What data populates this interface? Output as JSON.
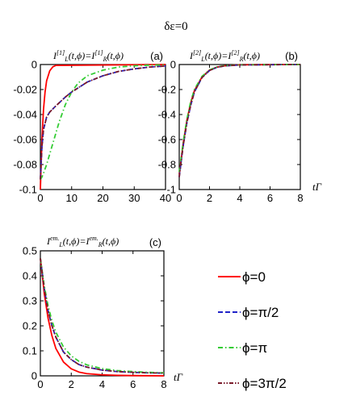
{
  "figure": {
    "title": "δε=0",
    "x_axis_label": "tΓ",
    "colors": {
      "phi_0": "#ff0000",
      "phi_pi_2": "#1f22c8",
      "phi_pi": "#33cc33",
      "phi_3pi_2": "#7a1a2a"
    }
  },
  "chart_data": [
    {
      "type": "line",
      "panel": "(a)",
      "title": "I[1]L(t,ϕ)=I[1]R(t,ϕ)",
      "xlim": [
        0,
        40
      ],
      "ylim": [
        -0.1,
        0
      ],
      "x_ticks": [
        "0",
        "10",
        "20",
        "30",
        "40"
      ],
      "y_ticks": [
        "0",
        "-0.02",
        "-0.04",
        "-0.06",
        "-0.08",
        "-0.1"
      ],
      "x_tick_values": [
        0,
        10,
        20,
        30,
        40
      ],
      "y_tick_values": [
        0,
        -0.02,
        -0.04,
        -0.06,
        -0.08,
        -0.1
      ],
      "series": [
        {
          "key": "phi_0",
          "x": [
            0,
            0.5,
            1,
            1.5,
            2,
            3,
            4,
            5,
            40
          ],
          "y": [
            -0.1,
            -0.06,
            -0.036,
            -0.022,
            -0.013,
            -0.005,
            -0.0018,
            -0.0007,
            0
          ]
        },
        {
          "key": "phi_pi_2",
          "x": [
            0,
            0.5,
            1,
            2,
            3,
            5,
            8,
            10,
            15,
            20,
            25,
            30,
            35,
            40
          ],
          "y": [
            -0.092,
            -0.066,
            -0.052,
            -0.042,
            -0.038,
            -0.033,
            -0.026,
            -0.022,
            -0.014,
            -0.009,
            -0.0055,
            -0.0035,
            -0.002,
            -0.0012
          ]
        },
        {
          "key": "phi_pi",
          "x": [
            0,
            0.5,
            1,
            2,
            4,
            6,
            8,
            10,
            12,
            15,
            20,
            25,
            30,
            35,
            40
          ],
          "y": [
            -0.092,
            -0.09,
            -0.087,
            -0.08,
            -0.063,
            -0.046,
            -0.032,
            -0.022,
            -0.015,
            -0.009,
            -0.0045,
            -0.002,
            -0.001,
            -0.0005,
            -0.0002
          ]
        },
        {
          "key": "phi_3pi_2",
          "x": [
            0,
            0.5,
            1,
            2,
            3,
            5,
            8,
            10,
            15,
            20,
            25,
            30,
            35,
            40
          ],
          "y": [
            -0.092,
            -0.066,
            -0.052,
            -0.042,
            -0.038,
            -0.033,
            -0.026,
            -0.022,
            -0.014,
            -0.009,
            -0.0055,
            -0.0035,
            -0.002,
            -0.0012
          ]
        }
      ]
    },
    {
      "type": "line",
      "panel": "(b)",
      "title": "I[2]L(t,ϕ)=I[2]R(t,ϕ)",
      "xlim": [
        0,
        8
      ],
      "ylim": [
        -1,
        0
      ],
      "x_ticks": [
        "0",
        "2",
        "4",
        "6",
        "8"
      ],
      "y_ticks": [
        "0",
        "-0.2",
        "-0.4",
        "-0.6",
        "-0.8",
        "-1"
      ],
      "x_tick_values": [
        0,
        2,
        4,
        6,
        8
      ],
      "y_tick_values": [
        0,
        -0.2,
        -0.4,
        -0.6,
        -0.8,
        -1
      ],
      "series": [
        {
          "key": "phi_0",
          "x": [
            0,
            0.25,
            0.5,
            0.75,
            1,
            1.5,
            2,
            2.5,
            3,
            4,
            8
          ],
          "y": [
            -0.88,
            -0.64,
            -0.45,
            -0.31,
            -0.21,
            -0.1,
            -0.045,
            -0.02,
            -0.01,
            -0.002,
            0
          ]
        },
        {
          "key": "phi_pi_2",
          "x": [
            0,
            0.25,
            0.5,
            0.75,
            1,
            1.5,
            2,
            2.5,
            3,
            4,
            8
          ],
          "y": [
            -0.9,
            -0.66,
            -0.47,
            -0.33,
            -0.22,
            -0.105,
            -0.048,
            -0.022,
            -0.011,
            -0.003,
            0
          ]
        },
        {
          "key": "phi_pi",
          "x": [
            0,
            0.25,
            0.5,
            0.75,
            1,
            1.5,
            2,
            2.5,
            3,
            4,
            8
          ],
          "y": [
            -0.86,
            -0.63,
            -0.44,
            -0.3,
            -0.2,
            -0.095,
            -0.043,
            -0.019,
            -0.009,
            -0.002,
            0
          ]
        },
        {
          "key": "phi_3pi_2",
          "x": [
            0,
            0.25,
            0.5,
            0.75,
            1,
            1.5,
            2,
            2.5,
            3,
            4,
            8
          ],
          "y": [
            -0.9,
            -0.66,
            -0.47,
            -0.33,
            -0.22,
            -0.105,
            -0.048,
            -0.022,
            -0.011,
            -0.003,
            0
          ]
        }
      ]
    },
    {
      "type": "line",
      "panel": "(c)",
      "title": "Iem.L(t,ϕ)=Iem.R(t,ϕ)",
      "xlim": [
        0,
        8
      ],
      "ylim": [
        0,
        0.5
      ],
      "x_ticks": [
        "0",
        "2",
        "4",
        "6",
        "8"
      ],
      "y_ticks": [
        "0.5",
        "0.4",
        "0.3",
        "0.2",
        "0.1",
        "0"
      ],
      "x_tick_values": [
        0,
        2,
        4,
        6,
        8
      ],
      "y_tick_values": [
        0.5,
        0.4,
        0.3,
        0.2,
        0.1,
        0
      ],
      "series": [
        {
          "key": "phi_0",
          "x": [
            0,
            0.25,
            0.5,
            0.75,
            1,
            1.5,
            2,
            2.5,
            3,
            4,
            5,
            6,
            8
          ],
          "y": [
            0.47,
            0.33,
            0.23,
            0.16,
            0.11,
            0.055,
            0.028,
            0.015,
            0.009,
            0.004,
            0.002,
            0.001,
            0
          ]
        },
        {
          "key": "phi_pi_2",
          "x": [
            0,
            0.25,
            0.5,
            0.75,
            1,
            1.5,
            2,
            2.5,
            3,
            4,
            5,
            6,
            7,
            8
          ],
          "y": [
            0.47,
            0.35,
            0.26,
            0.2,
            0.155,
            0.095,
            0.065,
            0.045,
            0.035,
            0.023,
            0.017,
            0.014,
            0.012,
            0.011
          ]
        },
        {
          "key": "phi_pi",
          "x": [
            0,
            0.25,
            0.5,
            0.75,
            1,
            1.5,
            2,
            2.5,
            3,
            4,
            5,
            6,
            7,
            8
          ],
          "y": [
            0.47,
            0.36,
            0.28,
            0.22,
            0.175,
            0.115,
            0.08,
            0.058,
            0.044,
            0.029,
            0.021,
            0.017,
            0.014,
            0.012
          ]
        },
        {
          "key": "phi_3pi_2",
          "x": [
            0,
            0.25,
            0.5,
            0.75,
            1,
            1.5,
            2,
            2.5,
            3,
            4,
            5,
            6,
            7,
            8
          ],
          "y": [
            0.47,
            0.35,
            0.26,
            0.2,
            0.155,
            0.095,
            0.065,
            0.045,
            0.035,
            0.023,
            0.017,
            0.014,
            0.012,
            0.011
          ]
        }
      ]
    }
  ],
  "legend": [
    {
      "key": "phi_0",
      "label": "ϕ=0",
      "dash": "solid"
    },
    {
      "key": "phi_pi_2",
      "label": "ϕ=π/2",
      "dash": "dash"
    },
    {
      "key": "phi_pi",
      "label": "ϕ=π",
      "dash": "dashdot"
    },
    {
      "key": "phi_3pi_2",
      "label": "ϕ=3π/2",
      "dash": "dashdotdot"
    }
  ]
}
